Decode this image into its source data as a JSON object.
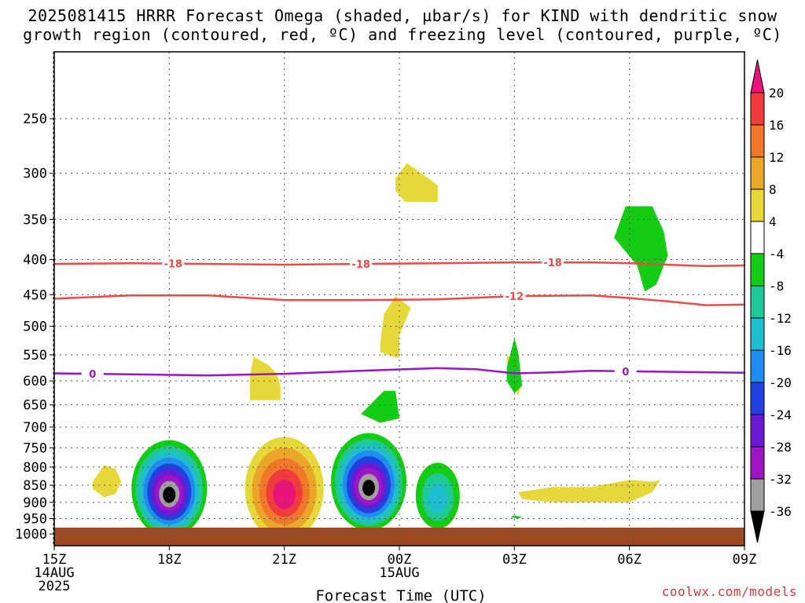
{
  "title_line1": "2025081415 HRRR Forecast Omega (shaded, µbar/s) for KIND with dendritic snow",
  "title_line2": "growth region (contoured, red, ºC) and freezing level (contoured, purple, ºC)",
  "credit": "coolwx.com/models",
  "chart_data": {
    "type": "heatmap",
    "title": "2025081415 HRRR Forecast Omega (shaded, µbar/s) for KIND with dendritic snow growth region (contoured, red, ºC) and freezing level (contoured, purple, ºC)",
    "xlabel": "Forecast Time (UTC)",
    "ylabel": "",
    "y_axis": {
      "scale": "log",
      "inverted": true,
      "ticks": [
        250,
        300,
        350,
        400,
        450,
        500,
        550,
        600,
        650,
        700,
        750,
        800,
        850,
        900,
        950,
        1000
      ],
      "ylim": [
        200,
        1040
      ]
    },
    "x_axis": {
      "ticks": [
        {
          "hour": 0,
          "label": "15Z",
          "sub1": "14AUG",
          "sub2": "2025"
        },
        {
          "hour": 3,
          "label": "18Z",
          "sub1": "",
          "sub2": ""
        },
        {
          "hour": 6,
          "label": "21Z",
          "sub1": "",
          "sub2": ""
        },
        {
          "hour": 9,
          "label": "00Z",
          "sub1": "15AUG",
          "sub2": ""
        },
        {
          "hour": 12,
          "label": "03Z",
          "sub1": "",
          "sub2": ""
        },
        {
          "hour": 15,
          "label": "06Z",
          "sub1": "",
          "sub2": ""
        },
        {
          "hour": 18,
          "label": "09Z",
          "sub1": "",
          "sub2": ""
        }
      ],
      "xlim": [
        0,
        18
      ]
    },
    "grid": true,
    "colorbar": {
      "levels": [
        20,
        16,
        12,
        8,
        4,
        -4,
        -8,
        -12,
        -16,
        -20,
        -24,
        -28,
        -32,
        -36
      ],
      "colors": [
        "#e8147a",
        "#f03c3c",
        "#f07828",
        "#eba529",
        "#e6d83a",
        "#ffffff",
        "#14cc14",
        "#20c896",
        "#20bcd0",
        "#1e8cf0",
        "#2040e0",
        "#6a1ad2",
        "#a014c8",
        "#a0a0a0",
        "#000000"
      ]
    },
    "contours": [
      {
        "name": "",
        "label": "-18",
        "color": "#f04848",
        "points": [
          [
            0,
            406
          ],
          [
            2,
            405
          ],
          [
            4,
            406
          ],
          [
            6,
            407
          ],
          [
            8,
            406
          ],
          [
            10,
            405
          ],
          [
            12,
            404
          ],
          [
            14,
            404
          ],
          [
            15,
            405
          ],
          [
            16,
            407
          ],
          [
            17,
            409
          ],
          [
            18,
            408
          ]
        ],
        "label_hours": [
          3.1,
          8,
          13
        ]
      },
      {
        "name": "",
        "label": "-12",
        "color": "#f04848",
        "points": [
          [
            0,
            456
          ],
          [
            2,
            451
          ],
          [
            4,
            451
          ],
          [
            6,
            458
          ],
          [
            8,
            458
          ],
          [
            10,
            457
          ],
          [
            12,
            452
          ],
          [
            14,
            451
          ],
          [
            15,
            455
          ],
          [
            16,
            460
          ],
          [
            17,
            466
          ],
          [
            18,
            465
          ]
        ],
        "label_hours": [
          12
        ]
      },
      {
        "name": "",
        "label": "0",
        "color": "#9a14c8",
        "points": [
          [
            0,
            585
          ],
          [
            2,
            587
          ],
          [
            4,
            589
          ],
          [
            6,
            586
          ],
          [
            8,
            580
          ],
          [
            10,
            575
          ],
          [
            11,
            577
          ],
          [
            12,
            585
          ],
          [
            13,
            583
          ],
          [
            14,
            580
          ],
          [
            16,
            582
          ],
          [
            18,
            584
          ]
        ],
        "label_hours": [
          1,
          14.9
        ]
      }
    ],
    "shaded_regions": [
      {
        "band": "4 to 8",
        "color": "#e6d83a",
        "points": [
          [
            1,
            840
          ],
          [
            1.3,
            795
          ],
          [
            1.6,
            805
          ],
          [
            1.75,
            840
          ],
          [
            1.6,
            875
          ],
          [
            1.3,
            885
          ],
          [
            1,
            860
          ]
        ]
      },
      {
        "band": "4 to 8",
        "color": "#e6d83a",
        "points": [
          [
            8.9,
            305
          ],
          [
            9.2,
            290
          ],
          [
            10.0,
            312
          ],
          [
            10.0,
            330
          ],
          [
            9.15,
            330
          ],
          [
            8.9,
            318
          ]
        ]
      },
      {
        "band": "4 to 8",
        "color": "#e6d83a",
        "points": [
          [
            8.5,
            530
          ],
          [
            8.6,
            480
          ],
          [
            8.9,
            452
          ],
          [
            9.3,
            470
          ],
          [
            9.0,
            515
          ],
          [
            9.0,
            555
          ],
          [
            8.9,
            555
          ],
          [
            8.5,
            545
          ]
        ]
      },
      {
        "band": "4 to 8",
        "color": "#e6d83a",
        "points": [
          [
            5.1,
            590
          ],
          [
            5.2,
            553
          ],
          [
            5.6,
            570
          ],
          [
            5.8,
            585
          ],
          [
            5.9,
            610
          ],
          [
            5.9,
            640
          ],
          [
            5.1,
            640
          ]
        ]
      },
      {
        "band": "4 to 8",
        "color": "#e6d83a",
        "points": [
          [
            11.8,
            550
          ],
          [
            12.0,
            565
          ],
          [
            12.2,
            600
          ],
          [
            12.1,
            630
          ],
          [
            11.9,
            600
          ],
          [
            11.8,
            565
          ]
        ]
      },
      {
        "band": "4 to 8",
        "color": "#e6d83a",
        "points": [
          [
            12.1,
            870
          ],
          [
            13.0,
            855
          ],
          [
            14.0,
            855
          ],
          [
            15.0,
            835
          ],
          [
            15.6,
            840
          ],
          [
            15.8,
            835
          ],
          [
            15.6,
            870
          ],
          [
            15.0,
            900
          ],
          [
            14.0,
            900
          ],
          [
            13.0,
            900
          ],
          [
            12.2,
            890
          ]
        ]
      },
      {
        "band": "-4 to -8",
        "color": "#14cc14",
        "points": [
          [
            14.6,
            372
          ],
          [
            14.9,
            335
          ],
          [
            15.6,
            335
          ],
          [
            15.9,
            365
          ],
          [
            16.0,
            395
          ],
          [
            15.7,
            435
          ],
          [
            15.4,
            445
          ],
          [
            15.2,
            408
          ],
          [
            14.6,
            372
          ]
        ]
      },
      {
        "band": "-4 to -8",
        "color": "#14cc14",
        "points": [
          [
            8.0,
            670
          ],
          [
            8.6,
            620
          ],
          [
            8.9,
            620
          ],
          [
            9.0,
            680
          ],
          [
            8.5,
            690
          ]
        ]
      },
      {
        "band": "-4 to -8",
        "color": "#14cc14",
        "points": [
          [
            11.8,
            575
          ],
          [
            12.0,
            520
          ],
          [
            12.1,
            545
          ],
          [
            12.2,
            610
          ],
          [
            12.0,
            625
          ],
          [
            11.8,
            600
          ]
        ]
      },
      {
        "band": "-4 to -8",
        "color": "#14cc14",
        "points": [
          [
            12.0,
            940
          ],
          [
            12.2,
            945
          ],
          [
            12.1,
            950
          ],
          [
            11.9,
            945
          ]
        ]
      }
    ],
    "cells": [
      {
        "center_hour": 3.0,
        "center_p": 860,
        "omega_min": -40,
        "note": "updraft cell"
      },
      {
        "center_hour": 6.0,
        "center_p": 860,
        "omega_max": 24,
        "note": "downdraft cell"
      },
      {
        "center_hour": 8.2,
        "center_p": 840,
        "omega_min": -40,
        "note": "updraft cell"
      },
      {
        "center_hour": 10.0,
        "center_p": 880,
        "omega_min": -14,
        "note": "updraft cell"
      }
    ],
    "surface_band_p": 1000
  }
}
